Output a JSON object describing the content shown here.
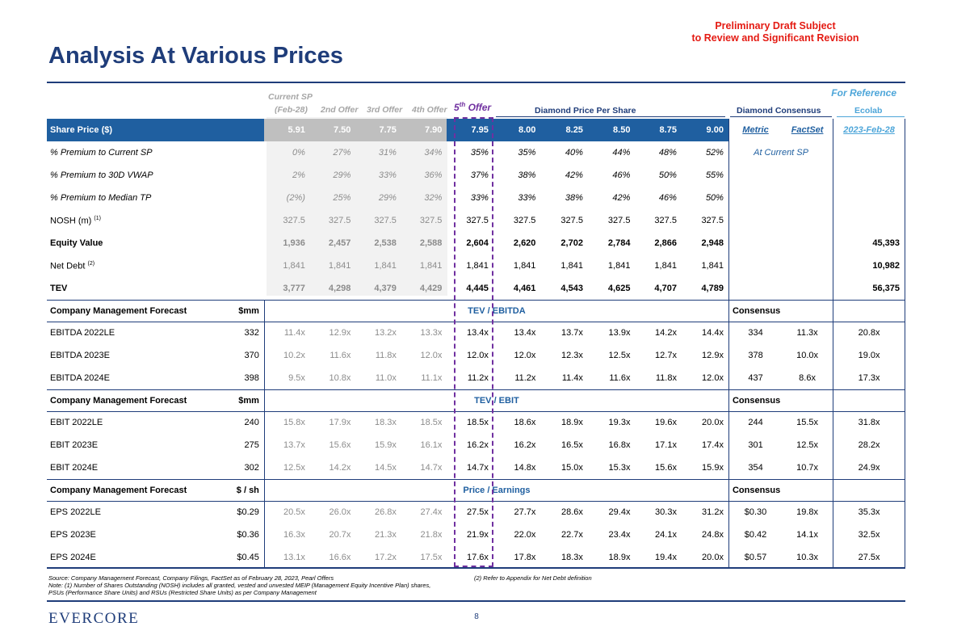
{
  "draft_notice": {
    "line1": "Preliminary Draft Subject",
    "line2": "to Review and Significant Revision"
  },
  "title": "Analysis At Various Prices",
  "for_reference": "For Reference",
  "headers": {
    "current_sp_1": "Current SP",
    "current_sp_2": "(Feb-28)",
    "offer2": "2nd Offer",
    "offer3": "3rd Offer",
    "offer4": "4th Offer",
    "offer5_num": "5",
    "offer5_sup": "th",
    "offer5_txt": " Offer",
    "diamond_pps": "Diamond Price Per Share",
    "diamond_consensus": "Diamond Consensus",
    "ecolab": "Ecolab"
  },
  "share_row": {
    "label": "Share Price ($)",
    "gray_values": [
      "5.91",
      "7.50",
      "7.75",
      "7.90"
    ],
    "values": [
      "7.95",
      "8.00",
      "8.25",
      "8.50",
      "8.75",
      "9.00"
    ],
    "metric": "Metric",
    "factset": "FactSet",
    "ecolab_date": "2023-Feb-28"
  },
  "metric_rows": [
    {
      "label": "% Premium to Current SP",
      "sup": "",
      "style": "it",
      "gray": [
        "0%",
        "27%",
        "31%",
        "34%"
      ],
      "vals": [
        "35%",
        "35%",
        "40%",
        "44%",
        "48%",
        "52%"
      ],
      "cons": "At Current SP",
      "eco": ""
    },
    {
      "label": "% Premium to 30D VWAP",
      "sup": "",
      "style": "it",
      "gray": [
        "2%",
        "29%",
        "33%",
        "36%"
      ],
      "vals": [
        "37%",
        "38%",
        "42%",
        "46%",
        "50%",
        "55%"
      ],
      "cons": "",
      "eco": ""
    },
    {
      "label": "% Premium to Median TP",
      "sup": "",
      "style": "it",
      "gray": [
        "(2%)",
        "25%",
        "29%",
        "32%"
      ],
      "vals": [
        "33%",
        "33%",
        "38%",
        "42%",
        "46%",
        "50%"
      ],
      "cons": "",
      "eco": ""
    },
    {
      "label": "NOSH (m)",
      "sup": "(1)",
      "style": "",
      "gray": [
        "327.5",
        "327.5",
        "327.5",
        "327.5"
      ],
      "vals": [
        "327.5",
        "327.5",
        "327.5",
        "327.5",
        "327.5",
        "327.5"
      ],
      "cons": "",
      "eco": ""
    },
    {
      "label": "Equity Value",
      "sup": "",
      "style": "b",
      "gray": [
        "1,936",
        "2,457",
        "2,538",
        "2,588"
      ],
      "vals": [
        "2,604",
        "2,620",
        "2,702",
        "2,784",
        "2,866",
        "2,948"
      ],
      "cons": "",
      "eco": "45,393"
    },
    {
      "label": "Net Debt",
      "sup": "(2)",
      "style": "",
      "gray": [
        "1,841",
        "1,841",
        "1,841",
        "1,841"
      ],
      "vals": [
        "1,841",
        "1,841",
        "1,841",
        "1,841",
        "1,841",
        "1,841"
      ],
      "cons": "",
      "eco": "10,982"
    },
    {
      "label": "TEV",
      "sup": "",
      "style": "b",
      "gray": [
        "3,777",
        "4,298",
        "4,379",
        "4,429"
      ],
      "vals": [
        "4,445",
        "4,461",
        "4,543",
        "4,625",
        "4,707",
        "4,789"
      ],
      "cons": "",
      "eco": "56,375"
    }
  ],
  "sections": [
    {
      "label": "Company Management Forecast",
      "unit": "$mm",
      "multiple": "TEV / EBITDA",
      "consensus": "Consensus",
      "rows": [
        {
          "label": "EBITDA 2022LE",
          "base": "332",
          "gray": [
            "11.4x",
            "12.9x",
            "13.2x",
            "13.3x"
          ],
          "vals": [
            "13.4x",
            "13.4x",
            "13.7x",
            "13.9x",
            "14.2x",
            "14.4x"
          ],
          "cons_val": "334",
          "cons_mult": "11.3x",
          "eco": "20.8x"
        },
        {
          "label": "EBITDA 2023E",
          "base": "370",
          "gray": [
            "10.2x",
            "11.6x",
            "11.8x",
            "12.0x"
          ],
          "vals": [
            "12.0x",
            "12.0x",
            "12.3x",
            "12.5x",
            "12.7x",
            "12.9x"
          ],
          "cons_val": "378",
          "cons_mult": "10.0x",
          "eco": "19.0x"
        },
        {
          "label": "EBITDA 2024E",
          "base": "398",
          "gray": [
            "9.5x",
            "10.8x",
            "11.0x",
            "11.1x"
          ],
          "vals": [
            "11.2x",
            "11.2x",
            "11.4x",
            "11.6x",
            "11.8x",
            "12.0x"
          ],
          "cons_val": "437",
          "cons_mult": "8.6x",
          "eco": "17.3x"
        }
      ]
    },
    {
      "label": "Company Management Forecast",
      "unit": "$mm",
      "multiple": "TEV / EBIT",
      "consensus": "Consensus",
      "rows": [
        {
          "label": "EBIT 2022LE",
          "base": "240",
          "gray": [
            "15.8x",
            "17.9x",
            "18.3x",
            "18.5x"
          ],
          "vals": [
            "18.5x",
            "18.6x",
            "18.9x",
            "19.3x",
            "19.6x",
            "20.0x"
          ],
          "cons_val": "244",
          "cons_mult": "15.5x",
          "eco": "31.8x"
        },
        {
          "label": "EBIT 2023E",
          "base": "275",
          "gray": [
            "13.7x",
            "15.6x",
            "15.9x",
            "16.1x"
          ],
          "vals": [
            "16.2x",
            "16.2x",
            "16.5x",
            "16.8x",
            "17.1x",
            "17.4x"
          ],
          "cons_val": "301",
          "cons_mult": "12.5x",
          "eco": "28.2x"
        },
        {
          "label": "EBIT 2024E",
          "base": "302",
          "gray": [
            "12.5x",
            "14.2x",
            "14.5x",
            "14.7x"
          ],
          "vals": [
            "14.7x",
            "14.8x",
            "15.0x",
            "15.3x",
            "15.6x",
            "15.9x"
          ],
          "cons_val": "354",
          "cons_mult": "10.7x",
          "eco": "24.9x"
        }
      ]
    },
    {
      "label": "Company Management Forecast",
      "unit": "$ / sh",
      "multiple": "Price / Earnings",
      "consensus": "Consensus",
      "rows": [
        {
          "label": "EPS 2022LE",
          "base": "$0.29",
          "gray": [
            "20.5x",
            "26.0x",
            "26.8x",
            "27.4x"
          ],
          "vals": [
            "27.5x",
            "27.7x",
            "28.6x",
            "29.4x",
            "30.3x",
            "31.2x"
          ],
          "cons_val": "$0.30",
          "cons_mult": "19.8x",
          "eco": "35.3x"
        },
        {
          "label": "EPS 2023E",
          "base": "$0.36",
          "gray": [
            "16.3x",
            "20.7x",
            "21.3x",
            "21.8x"
          ],
          "vals": [
            "21.9x",
            "22.0x",
            "22.7x",
            "23.4x",
            "24.1x",
            "24.8x"
          ],
          "cons_val": "$0.42",
          "cons_mult": "14.1x",
          "eco": "32.5x"
        },
        {
          "label": "EPS 2024E",
          "base": "$0.45",
          "gray": [
            "13.1x",
            "16.6x",
            "17.2x",
            "17.5x"
          ],
          "vals": [
            "17.6x",
            "17.8x",
            "18.3x",
            "18.9x",
            "19.4x",
            "20.0x"
          ],
          "cons_val": "$0.57",
          "cons_mult": "10.3x",
          "eco": "27.5x"
        }
      ]
    }
  ],
  "footnotes": {
    "line1": "Source: Company Management Forecast, Company Filings, FactSet as of February 28, 2023, Pearl Offers",
    "line2": "Note: (1) Number of Shares Outstanding (NOSH) includes all granted, vested and unvested MEIP (Management Equity Incentive Plan) shares,",
    "line3": "PSUs (Performance Share Units) and RSUs (Restricted Share Units) as per Company Management",
    "note2": "(2) Refer to Appendix for Net Debt definition"
  },
  "logo": "EVERCORE",
  "page_number": "8"
}
